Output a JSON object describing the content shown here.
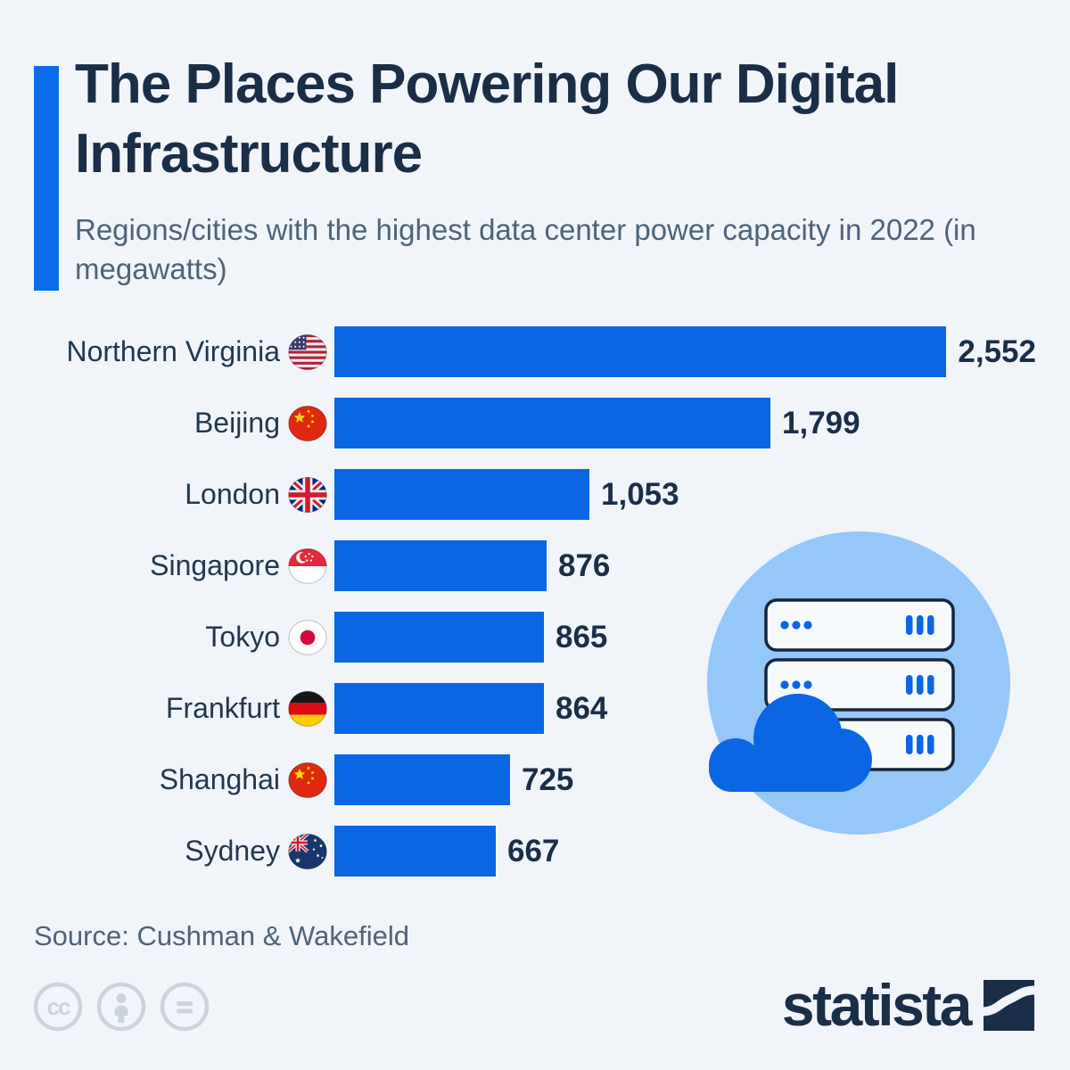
{
  "header": {
    "title": "The Places Powering Our Digital Infrastructure",
    "subtitle": "Regions/cities with the highest data center power capacity in 2022 (in megawatts)"
  },
  "chart_data": {
    "type": "bar",
    "orientation": "horizontal",
    "title": "The Places Powering Our Digital Infrastructure",
    "subtitle": "Regions/cities with the highest data center power capacity in 2022 (in megawatts)",
    "unit": "megawatts",
    "categories": [
      "Northern Virginia",
      "Beijing",
      "London",
      "Singapore",
      "Tokyo",
      "Frankfurt",
      "Shanghai",
      "Sydney"
    ],
    "values": [
      2552,
      1799,
      1053,
      876,
      865,
      864,
      725,
      667
    ],
    "value_labels": [
      "2,552",
      "1,799",
      "1,053",
      "876",
      "865",
      "864",
      "725",
      "667"
    ],
    "flags": [
      "us",
      "cn",
      "gb",
      "sg",
      "jp",
      "de",
      "cn",
      "au"
    ],
    "flag_icon_names": [
      "flag-us-icon",
      "flag-cn-icon",
      "flag-gb-icon",
      "flag-sg-icon",
      "flag-jp-icon",
      "flag-de-icon",
      "flag-cn-icon",
      "flag-au-icon"
    ],
    "xlim": [
      0,
      2552
    ],
    "grid": false,
    "legend": false,
    "value_label_position": "right-of-bar"
  },
  "illustration": {
    "name": "cloud-server-illustration",
    "elements": [
      "server-rack-icon",
      "server-rack-icon",
      "server-rack-icon",
      "cloud-icon"
    ]
  },
  "footer": {
    "source": "Source: Cushman & Wakefield",
    "license_icons": [
      "cc-icon",
      "cc-by-person-icon",
      "cc-nd-equals-icon"
    ],
    "brand": "statista"
  },
  "colors": {
    "background": "#f1f5f9",
    "accent_bar": "#0c6cee",
    "bar_blue": "#0b66e3",
    "title_text": "#1b2e47",
    "subtitle_text": "#4e6379",
    "value_text": "#1b2e47",
    "illustration_circle": "#95c7f8",
    "server_fill": "#f6fafd",
    "server_stroke": "#16243d",
    "license_gray": "#c9d3dd"
  }
}
